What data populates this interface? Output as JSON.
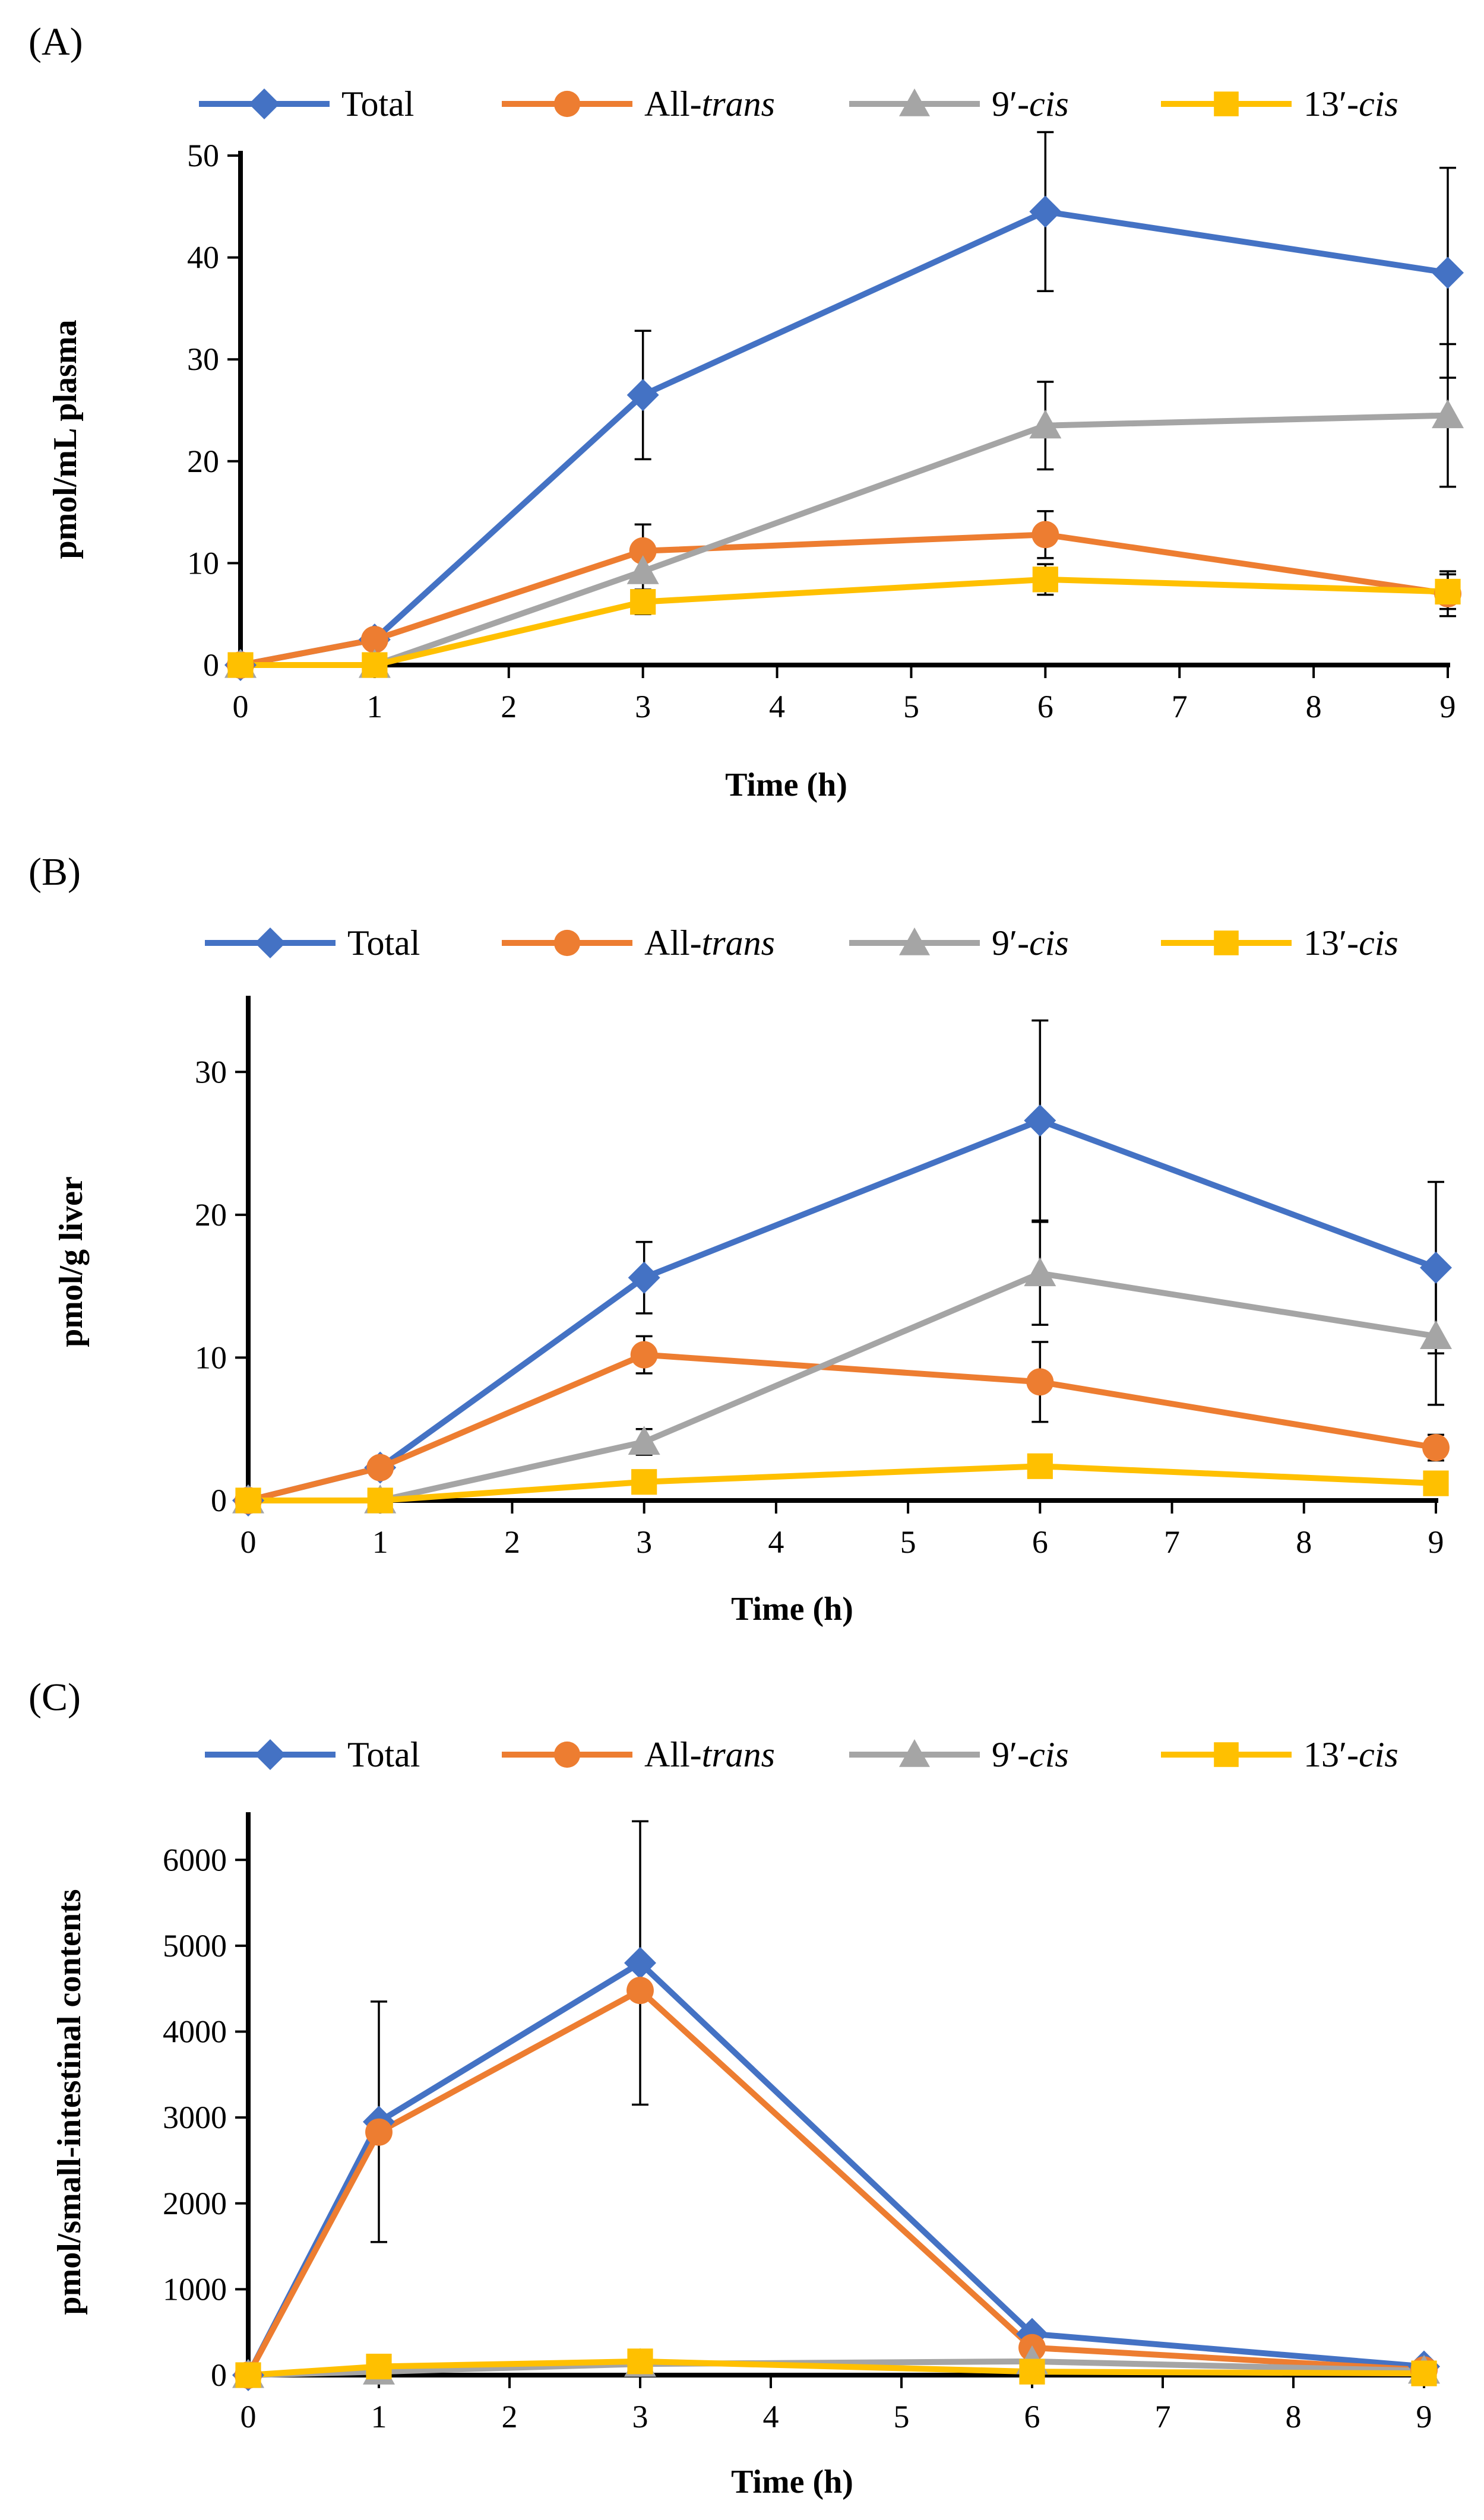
{
  "chart_data": [
    {
      "type": "line",
      "panel_label": "(A)",
      "xlabel": "Time (h)",
      "ylabel": "pmol/mL plasma",
      "xlim": [
        0,
        9
      ],
      "ylim": [
        0,
        50
      ],
      "x_ticks": [
        0,
        1,
        2,
        3,
        4,
        5,
        6,
        7,
        8,
        9
      ],
      "y_ticks": [
        0,
        10,
        20,
        30,
        40,
        50
      ],
      "x": [
        0,
        1,
        3,
        6,
        9
      ],
      "legend_position": "top",
      "series": [
        {
          "name": "Total",
          "marker": "diamond",
          "color": "#4472C4",
          "values": [
            0,
            2.5,
            26.5,
            44.5,
            38.5
          ],
          "error": [
            0,
            0,
            6.3,
            7.8,
            10.3
          ]
        },
        {
          "name": "All-trans",
          "name_prefix": "All-",
          "name_italic": "trans",
          "marker": "circle",
          "color": "#ED7D31",
          "values": [
            0,
            2.5,
            11.2,
            12.8,
            7.0
          ],
          "error": [
            0,
            0,
            2.6,
            2.3,
            2.2
          ]
        },
        {
          "name": "9′-cis",
          "name_prefix": "9′-",
          "name_italic": "cis",
          "marker": "triangle",
          "color": "#A5A5A5",
          "values": [
            0,
            0,
            9.2,
            23.5,
            24.5
          ],
          "error": [
            0,
            0,
            2.0,
            4.3,
            7.0
          ]
        },
        {
          "name": "13′-cis",
          "name_prefix": "13′-",
          "name_italic": "cis",
          "marker": "square",
          "color": "#FFC000",
          "values": [
            0,
            0,
            6.2,
            8.4,
            7.2
          ],
          "error": [
            0,
            0,
            1.2,
            1.5,
            1.7
          ]
        }
      ]
    },
    {
      "type": "line",
      "panel_label": "(B)",
      "xlabel": "Time (h)",
      "ylabel": "pmol/g liver",
      "xlim": [
        0,
        9
      ],
      "ylim": [
        0,
        35
      ],
      "x_ticks": [
        0,
        1,
        2,
        3,
        4,
        5,
        6,
        7,
        8,
        9
      ],
      "y_ticks": [
        0,
        10,
        20,
        30
      ],
      "x": [
        0,
        1,
        3,
        6,
        9
      ],
      "legend_position": "top",
      "series": [
        {
          "name": "Total",
          "marker": "diamond",
          "color": "#4472C4",
          "values": [
            0,
            2.3,
            15.6,
            26.6,
            16.3
          ],
          "error": [
            0,
            0,
            2.5,
            7.0,
            6.0
          ]
        },
        {
          "name": "All-trans",
          "name_prefix": "All-",
          "name_italic": "trans",
          "marker": "circle",
          "color": "#ED7D31",
          "values": [
            0,
            2.3,
            10.2,
            8.3,
            3.7
          ],
          "error": [
            0,
            0,
            1.3,
            2.8,
            0.9
          ]
        },
        {
          "name": "9′-cis",
          "name_prefix": "9′-",
          "name_italic": "cis",
          "marker": "triangle",
          "color": "#A5A5A5",
          "values": [
            0,
            0,
            4.1,
            15.9,
            11.5
          ],
          "error": [
            0,
            0,
            0.9,
            3.6,
            4.8
          ]
        },
        {
          "name": "13′-cis",
          "name_prefix": "13′-",
          "name_italic": "cis",
          "marker": "square",
          "color": "#FFC000",
          "values": [
            0,
            0,
            1.3,
            2.4,
            1.2
          ],
          "error": [
            0,
            0,
            0.3,
            0.5,
            0.3
          ]
        }
      ]
    },
    {
      "type": "line",
      "panel_label": "(C)",
      "xlabel": "Time (h)",
      "ylabel": "pmol/small-intestinal contents",
      "xlim": [
        0,
        9
      ],
      "ylim": [
        0,
        6500
      ],
      "x_ticks": [
        0,
        1,
        2,
        3,
        4,
        5,
        6,
        7,
        8,
        9
      ],
      "y_ticks": [
        0,
        1000,
        2000,
        3000,
        4000,
        5000,
        6000
      ],
      "x": [
        0,
        1,
        3,
        6,
        9
      ],
      "legend_position": "top",
      "series": [
        {
          "name": "Total",
          "marker": "diamond",
          "color": "#4472C4",
          "values": [
            0,
            2950,
            4800,
            480,
            100
          ],
          "error": [
            0,
            1400,
            1650,
            0,
            0
          ]
        },
        {
          "name": "All-trans",
          "name_prefix": "All-",
          "name_italic": "trans",
          "marker": "circle",
          "color": "#ED7D31",
          "values": [
            0,
            2830,
            4480,
            320,
            60
          ],
          "error": [
            0,
            0,
            0,
            0,
            0
          ]
        },
        {
          "name": "9′-cis",
          "name_prefix": "9′-",
          "name_italic": "cis",
          "marker": "triangle",
          "color": "#A5A5A5",
          "values": [
            0,
            40,
            130,
            160,
            50
          ],
          "error": [
            0,
            0,
            0,
            0,
            0
          ]
        },
        {
          "name": "13′-cis",
          "name_prefix": "13′-",
          "name_italic": "cis",
          "marker": "square",
          "color": "#FFC000",
          "values": [
            0,
            100,
            160,
            40,
            20
          ],
          "error": [
            0,
            0,
            0,
            0,
            0
          ]
        }
      ]
    }
  ]
}
